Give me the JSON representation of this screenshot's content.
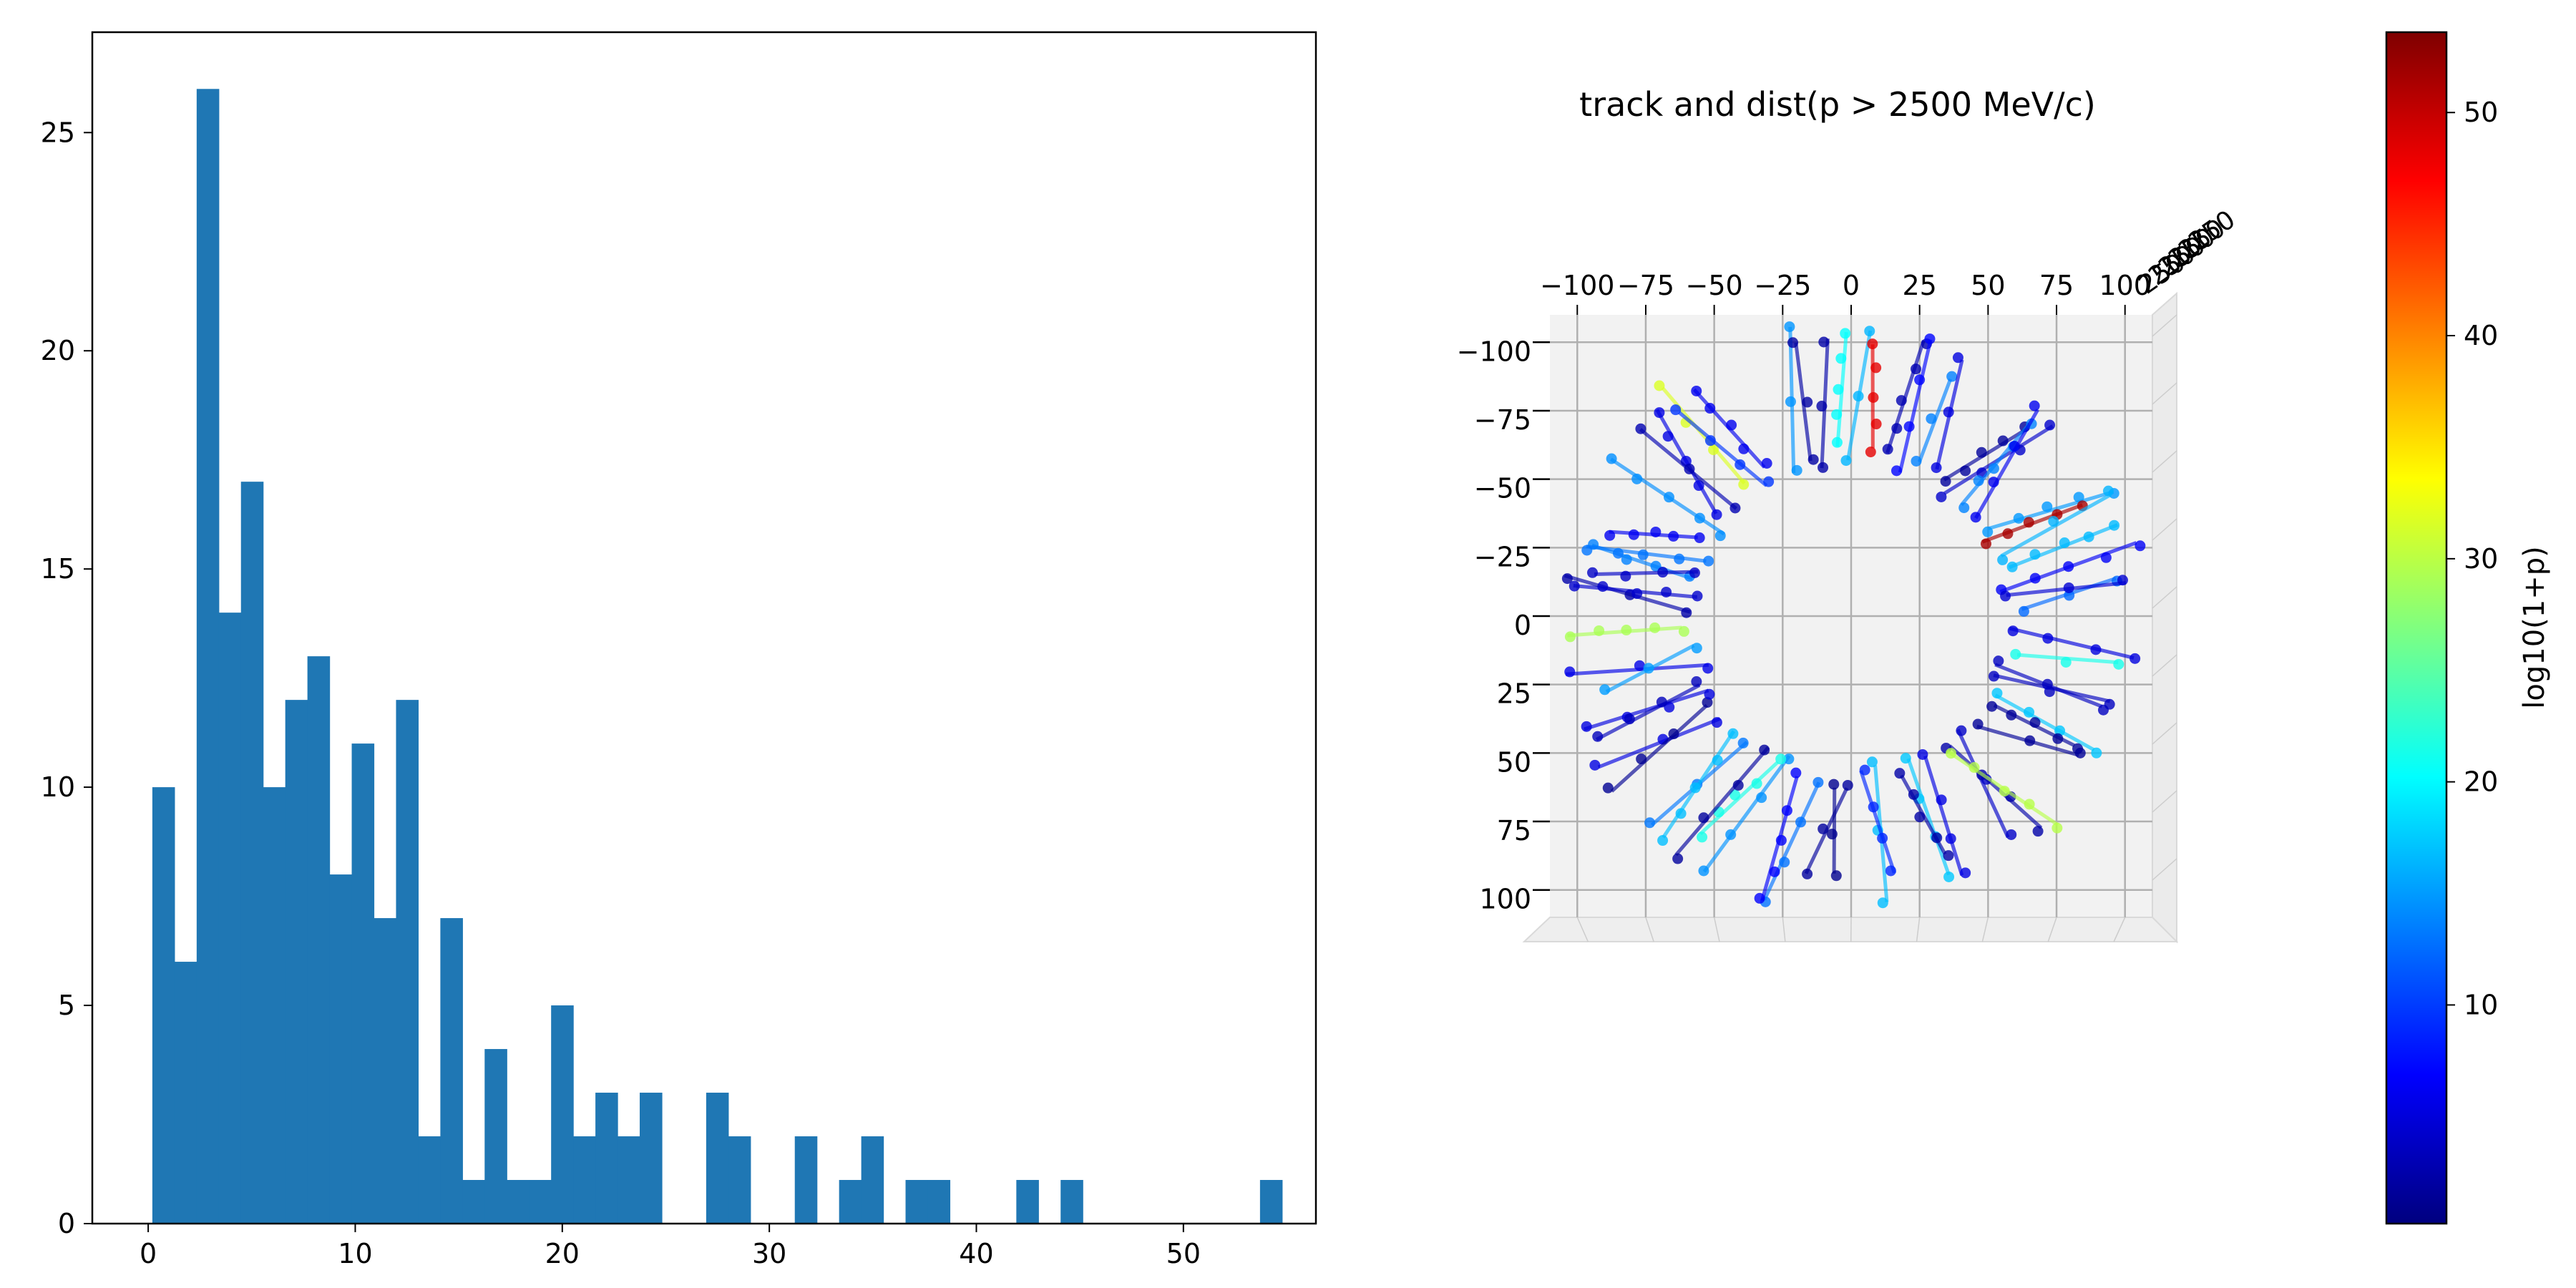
{
  "chart_data": [
    {
      "type": "bar",
      "subtype": "histogram",
      "title": "",
      "xlabel": "",
      "ylabel": "",
      "xlim": [
        -2.7,
        56.4
      ],
      "ylim": [
        0,
        27.3
      ],
      "bin_start": 0.2,
      "bin_width": 1.07,
      "values": [
        10,
        6,
        26,
        14,
        17,
        10,
        12,
        13,
        8,
        11,
        7,
        12,
        2,
        7,
        1,
        4,
        1,
        1,
        5,
        2,
        3,
        2,
        3,
        0,
        0,
        3,
        2,
        0,
        0,
        2,
        0,
        1,
        2,
        0,
        1,
        1,
        0,
        0,
        0,
        1,
        0,
        1,
        0,
        0,
        0,
        0,
        0,
        0,
        0,
        0,
        1
      ],
      "x_ticks": [
        0,
        10,
        20,
        30,
        40,
        50
      ],
      "y_ticks": [
        0,
        5,
        10,
        15,
        20,
        25
      ],
      "x_tick_labels": [
        "0",
        "10",
        "20",
        "30",
        "40",
        "50"
      ],
      "y_tick_labels": [
        "0",
        "5",
        "10",
        "15",
        "20",
        "25"
      ],
      "color": "#1f77b4",
      "grid": false
    },
    {
      "type": "scatter",
      "subtype": "3d-scatter-with-track-segments",
      "title": "track and dist(p > 2500 MeV/c)",
      "xlim": [
        -110,
        110
      ],
      "ylim": [
        -110,
        110
      ],
      "x_ticks": [
        -100,
        -75,
        -50,
        -25,
        0,
        25,
        50,
        75,
        100
      ],
      "y_ticks": [
        -100,
        -75,
        -50,
        -25,
        0,
        25,
        50,
        75,
        100
      ],
      "x_tick_labels": [
        "−100",
        "−75",
        "−50",
        "−25",
        "0",
        "25",
        "50",
        "75",
        "100"
      ],
      "y_tick_labels": [
        "−100",
        "−75",
        "−50",
        "−25",
        "0",
        "25",
        "50",
        "75",
        "100"
      ],
      "z_tick_cluster_label": "250",
      "grid": true,
      "pane_color": "#f2f2f2",
      "colormap": "jet",
      "point_ring_inner_radius": 55,
      "point_ring_outer_radius": 105,
      "track_count": 64
    },
    {
      "type": "colorbar",
      "label": "log10(1+p)",
      "colormap": "jet",
      "range": [
        0.2,
        53.6
      ],
      "ticks": [
        10,
        20,
        30,
        40,
        50
      ],
      "tick_labels": [
        "10",
        "20",
        "30",
        "40",
        "50"
      ]
    }
  ]
}
